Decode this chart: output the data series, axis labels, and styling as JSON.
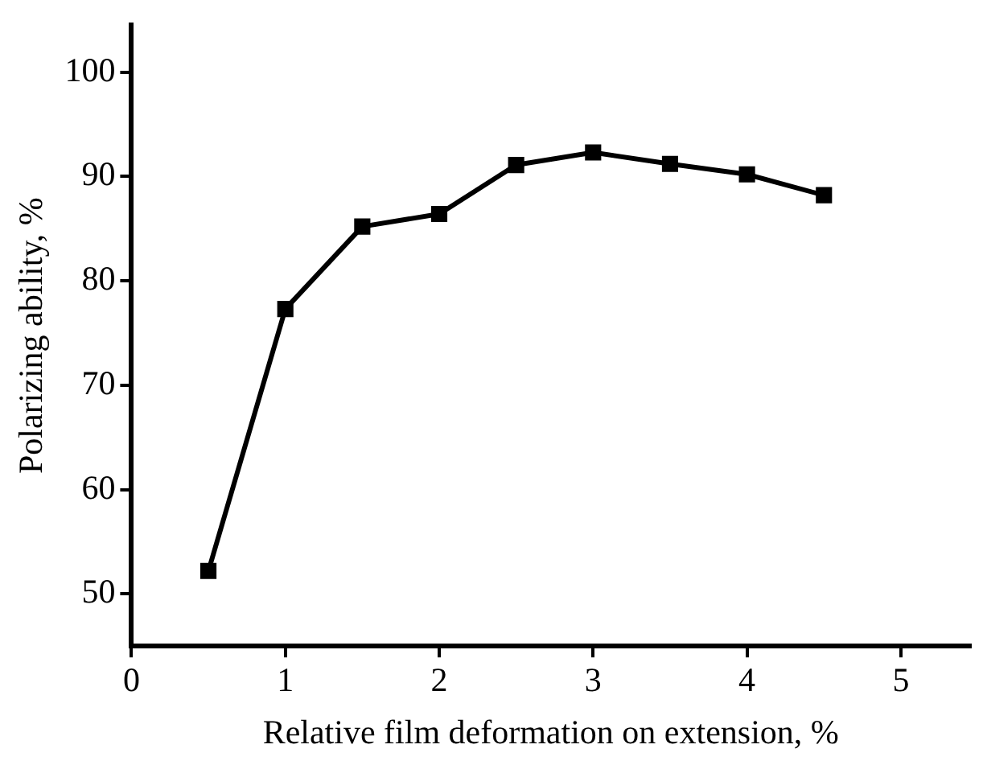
{
  "chart_data": {
    "type": "line",
    "xlabel": "Relative film deformation on extension, %",
    "ylabel": "Polarizing ability, %",
    "x": [
      0.5,
      1,
      1.5,
      2,
      2.5,
      3,
      3.5,
      4,
      4.5
    ],
    "series": [
      {
        "color": "#000000",
        "values": [
          52.2,
          77.3,
          85.2,
          86.4,
          91.1,
          92.3,
          91.2,
          90.2,
          88.2
        ]
      }
    ],
    "xlim": [
      0,
      5.45
    ],
    "xticks": [
      0,
      1,
      2,
      3,
      4,
      5
    ],
    "ylim": [
      45,
      104.5
    ],
    "yticks": [
      50,
      60,
      70,
      80,
      90,
      100
    ],
    "grid": false,
    "legend": false,
    "marker": "square",
    "line_style": "solid"
  }
}
